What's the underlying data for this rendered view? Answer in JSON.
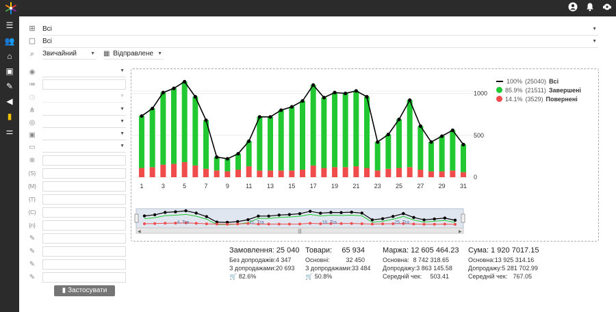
{
  "filters": {
    "row1_value": "Всі",
    "row2_value": "Всі",
    "mode_value": "Звичайний",
    "status_value": "Відправлене"
  },
  "apply_label": "Застосувати",
  "chart_data": {
    "type": "bar",
    "categories": [
      1,
      2,
      3,
      4,
      5,
      6,
      7,
      8,
      9,
      10,
      11,
      12,
      13,
      14,
      15,
      16,
      17,
      18,
      19,
      20,
      21,
      22,
      23,
      24,
      25,
      26,
      27,
      28,
      29,
      30,
      31
    ],
    "x_tick_labels": [
      "1",
      "3",
      "5",
      "7",
      "9",
      "11",
      "13",
      "15",
      "17",
      "19",
      "21",
      "23",
      "25",
      "27",
      "29",
      "31"
    ],
    "y_tick_labels": [
      "0",
      "500",
      "1000"
    ],
    "ylim": [
      0,
      1200
    ],
    "series": [
      {
        "name": "Завершені",
        "color": "#22c832",
        "values": [
          620,
          700,
          860,
          900,
          960,
          820,
          580,
          160,
          150,
          190,
          300,
          640,
          640,
          720,
          760,
          820,
          960,
          840,
          890,
          880,
          900,
          850,
          340,
          410,
          580,
          800,
          520,
          350,
          420,
          480,
          330
        ]
      },
      {
        "name": "Повернені",
        "color": "#f04c4c",
        "values": [
          110,
          120,
          150,
          160,
          180,
          140,
          100,
          80,
          70,
          90,
          130,
          80,
          80,
          80,
          80,
          90,
          140,
          110,
          120,
          120,
          130,
          110,
          80,
          100,
          110,
          120,
          90,
          70,
          70,
          80,
          60
        ]
      },
      {
        "name": "Всі",
        "color": "#000000",
        "values": [
          730,
          820,
          1010,
          1060,
          1140,
          960,
          680,
          240,
          220,
          280,
          430,
          720,
          720,
          800,
          840,
          910,
          1100,
          950,
          1010,
          1000,
          1030,
          960,
          420,
          510,
          690,
          920,
          610,
          420,
          490,
          560,
          390
        ]
      }
    ],
    "legend": [
      {
        "pct": "100%",
        "count": "(25040)",
        "label": "Всі",
        "marker": "line",
        "color": "#000000"
      },
      {
        "pct": "85.9%",
        "count": "(21511)",
        "label": "Завершені",
        "marker": "dot",
        "color": "#22c832"
      },
      {
        "pct": "14.1%",
        "count": "(3529)",
        "label": "Повернені",
        "marker": "dot",
        "color": "#f04c4c"
      }
    ],
    "navigator_labels": [
      "4. Tra",
      "11. Tra",
      "18. Tra",
      "25. Tra"
    ]
  },
  "stats": {
    "orders": {
      "head_label": "Замовлення:",
      "head_value": "25 040",
      "rows": [
        {
          "k": "Без допродажів:",
          "v": "4 347"
        },
        {
          "k": "З допродажами:",
          "v": "20 693"
        },
        {
          "k": "🛒 82.6%",
          "v": ""
        }
      ]
    },
    "goods": {
      "head_label": "Товари:",
      "head_value": "65 934",
      "rows": [
        {
          "k": "Основні:",
          "v": "32 450"
        },
        {
          "k": "З допродажами:",
          "v": "33 484"
        },
        {
          "k": "🛒 50.8%",
          "v": ""
        }
      ]
    },
    "margin": {
      "head_label": "Маржа:",
      "head_value": "12 605 464.23",
      "rows": [
        {
          "k": "Основна:",
          "v": "8 742 318.65"
        },
        {
          "k": "Допродажу:",
          "v": "3 863 145.58"
        },
        {
          "k": "Середній чек:",
          "v": "503.41"
        }
      ]
    },
    "sum": {
      "head_label": "Сума:",
      "head_value": "1 920 7017.15",
      "rows": [
        {
          "k": "Основна:",
          "v": "13 925 314.16"
        },
        {
          "k": "Допродажу:",
          "v": "5 281 702.99"
        },
        {
          "k": "Середній чек:",
          "v": "767.05"
        }
      ]
    }
  }
}
